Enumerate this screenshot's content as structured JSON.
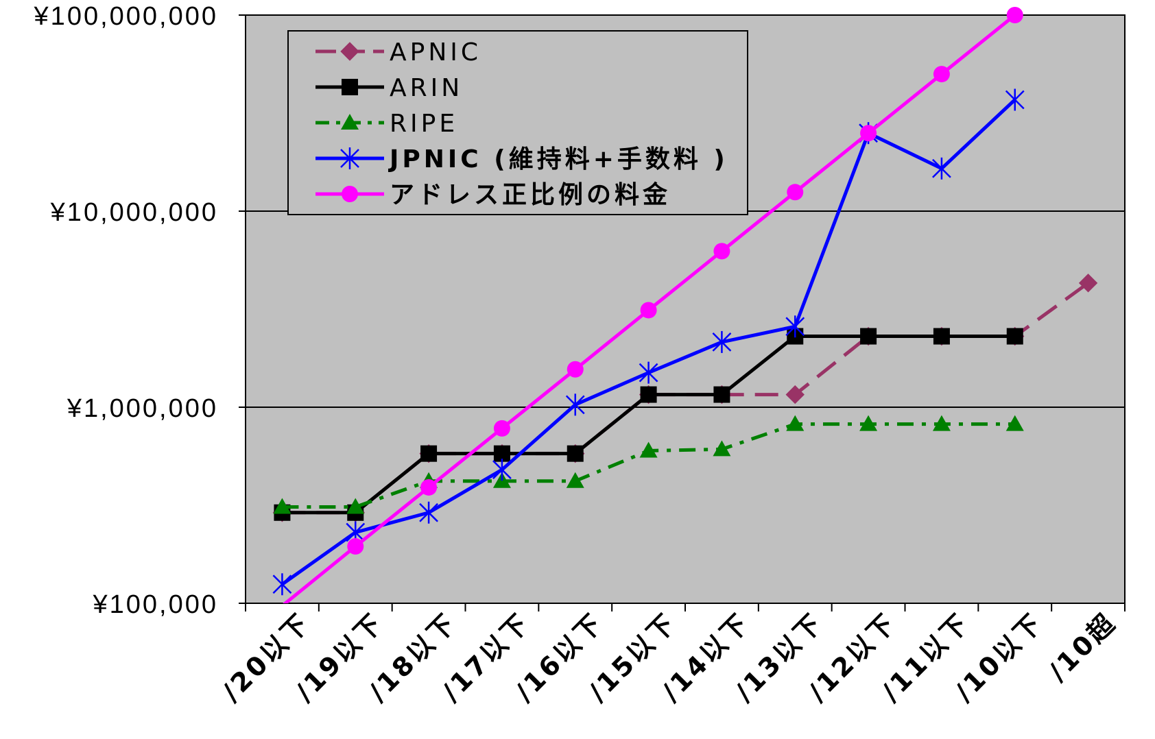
{
  "chart_data": {
    "type": "line",
    "title": "",
    "xlabel": "",
    "ylabel": "",
    "y_scale": "log",
    "ylim": [
      100000,
      100000000
    ],
    "y_ticks": [
      100000,
      1000000,
      10000000,
      100000000
    ],
    "y_tick_labels": [
      "¥100,000",
      "¥1,000,000",
      "¥10,000,000",
      "¥100,000,000"
    ],
    "categories": [
      "/20以下",
      "/19以下",
      "/18以下",
      "/17以下",
      "/16以下",
      "/15以下",
      "/14以下",
      "/13以下",
      "/12以下",
      "/11以下",
      "/10以下",
      "/10超"
    ],
    "grid": "horizontal",
    "legend_position": "top-left",
    "series": [
      {
        "name": "APNIC",
        "color": "#993366",
        "marker": "diamond",
        "dash": "dashed",
        "values": [
          290000,
          290000,
          580000,
          580000,
          580000,
          1160000,
          1160000,
          1160000,
          2300000,
          2300000,
          2300000,
          4300000
        ]
      },
      {
        "name": "ARIN",
        "color": "#000000",
        "marker": "square",
        "dash": "solid",
        "values": [
          290000,
          290000,
          580000,
          580000,
          580000,
          1160000,
          1160000,
          2300000,
          2300000,
          2300000,
          2300000,
          null
        ]
      },
      {
        "name": "RIPE",
        "color": "#008000",
        "marker": "triangle",
        "dash": "dashdot",
        "values": [
          310000,
          310000,
          420000,
          420000,
          420000,
          600000,
          610000,
          820000,
          820000,
          820000,
          820000,
          null
        ]
      },
      {
        "name": "JPNIC (維持料+手数料 )",
        "color": "#0000ff",
        "marker": "asterisk",
        "dash": "solid",
        "values": [
          125000,
          230000,
          290000,
          480000,
          1030000,
          1500000,
          2150000,
          2580000,
          25000000,
          16500000,
          37000000,
          null
        ]
      },
      {
        "name": "アドレス正比例の料金",
        "color": "#ff00ff",
        "marker": "circle",
        "dash": "solid",
        "values": [
          97000,
          195000,
          390000,
          780000,
          1560000,
          3125000,
          6250000,
          12500000,
          25000000,
          50000000,
          100000000,
          null
        ]
      }
    ]
  }
}
